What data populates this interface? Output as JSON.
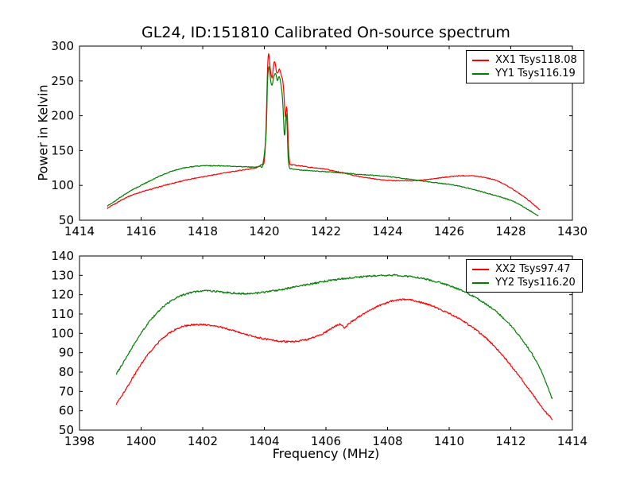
{
  "figure": {
    "title": "GL24, ID:151810 Calibrated On-source spectrum",
    "background": "#ffffff",
    "frame_color": "#000000"
  },
  "chart_data": [
    {
      "type": "line",
      "title": "",
      "xlabel": "",
      "ylabel": "Power in Kelvin",
      "xlim": [
        1414,
        1430
      ],
      "ylim": [
        50,
        300
      ],
      "xticks": [
        1414,
        1416,
        1418,
        1420,
        1422,
        1424,
        1426,
        1428,
        1430
      ],
      "yticks": [
        50,
        100,
        150,
        200,
        250,
        300
      ],
      "grid": false,
      "legend_position": "upper right",
      "series": [
        {
          "label": "XX1 Tsys118.08",
          "color": "#ff0000",
          "noise_k": 0.6,
          "points": [
            [
              1414.9,
              67
            ],
            [
              1415.1,
              72
            ],
            [
              1415.4,
              80
            ],
            [
              1415.7,
              86
            ],
            [
              1416.0,
              90.5
            ],
            [
              1416.4,
              95.5
            ],
            [
              1416.8,
              100.5
            ],
            [
              1417.2,
              105
            ],
            [
              1417.6,
              109
            ],
            [
              1418.0,
              112.5
            ],
            [
              1418.4,
              115.5
            ],
            [
              1418.8,
              118.5
            ],
            [
              1419.2,
              121.5
            ],
            [
              1419.5,
              123.5
            ],
            [
              1419.75,
              125.5
            ],
            [
              1419.9,
              130
            ],
            [
              1420.0,
              136
            ],
            [
              1420.06,
              190
            ],
            [
              1420.1,
              262
            ],
            [
              1420.14,
              289
            ],
            [
              1420.19,
              268
            ],
            [
              1420.25,
              254
            ],
            [
              1420.3,
              272
            ],
            [
              1420.34,
              278
            ],
            [
              1420.4,
              262
            ],
            [
              1420.45,
              263
            ],
            [
              1420.49,
              267
            ],
            [
              1420.55,
              258
            ],
            [
              1420.6,
              250
            ],
            [
              1420.64,
              228
            ],
            [
              1420.68,
              198
            ],
            [
              1420.72,
              213
            ],
            [
              1420.75,
              198
            ],
            [
              1420.78,
              158
            ],
            [
              1420.82,
              133
            ],
            [
              1420.88,
              129.5
            ],
            [
              1421.0,
              129
            ],
            [
              1421.5,
              126
            ],
            [
              1422.0,
              123
            ],
            [
              1422.5,
              118.5
            ],
            [
              1423.0,
              113.5
            ],
            [
              1423.5,
              109.8
            ],
            [
              1424.0,
              107.3
            ],
            [
              1424.5,
              106.6
            ],
            [
              1425.0,
              107.2
            ],
            [
              1425.5,
              109.5
            ],
            [
              1426.0,
              112.5
            ],
            [
              1426.3,
              113.6
            ],
            [
              1426.6,
              114
            ],
            [
              1426.9,
              113.2
            ],
            [
              1427.2,
              111
            ],
            [
              1427.5,
              107.5
            ],
            [
              1427.8,
              101.5
            ],
            [
              1428.1,
              93.5
            ],
            [
              1428.45,
              83
            ],
            [
              1428.7,
              74
            ],
            [
              1428.95,
              65
            ]
          ]
        },
        {
          "label": "YY1 Tsys116.19",
          "color": "#007f00",
          "noise_k": 0.6,
          "points": [
            [
              1414.9,
              70
            ],
            [
              1415.1,
              76
            ],
            [
              1415.4,
              85
            ],
            [
              1415.7,
              93
            ],
            [
              1416.0,
              100
            ],
            [
              1416.4,
              109
            ],
            [
              1416.8,
              117
            ],
            [
              1417.2,
              123
            ],
            [
              1417.6,
              126.5
            ],
            [
              1418.0,
              128
            ],
            [
              1418.4,
              128.2
            ],
            [
              1418.8,
              127.8
            ],
            [
              1419.2,
              127
            ],
            [
              1419.6,
              126.3
            ],
            [
              1419.85,
              127.5
            ],
            [
              1419.95,
              130
            ],
            [
              1420.06,
              175
            ],
            [
              1420.1,
              245
            ],
            [
              1420.15,
              271
            ],
            [
              1420.2,
              252
            ],
            [
              1420.25,
              244
            ],
            [
              1420.32,
              258
            ],
            [
              1420.37,
              260
            ],
            [
              1420.42,
              251
            ],
            [
              1420.48,
              256
            ],
            [
              1420.52,
              250
            ],
            [
              1420.57,
              235
            ],
            [
              1420.61,
              210
            ],
            [
              1420.65,
              172
            ],
            [
              1420.68,
              182
            ],
            [
              1420.71,
              203
            ],
            [
              1420.74,
              185
            ],
            [
              1420.77,
              142
            ],
            [
              1420.81,
              126
            ],
            [
              1420.87,
              124
            ],
            [
              1421.0,
              123
            ],
            [
              1421.5,
              121
            ],
            [
              1422.0,
              119.6
            ],
            [
              1422.5,
              118
            ],
            [
              1423.0,
              116.2
            ],
            [
              1423.5,
              114.5
            ],
            [
              1424.0,
              112.8
            ],
            [
              1424.5,
              110
            ],
            [
              1425.0,
              107
            ],
            [
              1425.5,
              104.3
            ],
            [
              1426.0,
              101.4
            ],
            [
              1426.5,
              97.2
            ],
            [
              1427.0,
              91.5
            ],
            [
              1427.5,
              85.5
            ],
            [
              1428.0,
              78.5
            ],
            [
              1428.4,
              69.5
            ],
            [
              1428.7,
              61.5
            ],
            [
              1428.9,
              56
            ]
          ]
        }
      ]
    },
    {
      "type": "line",
      "title": "",
      "xlabel": "Frequency (MHz)",
      "ylabel": "",
      "xlim": [
        1398,
        1414
      ],
      "ylim": [
        50,
        140
      ],
      "xticks": [
        1398,
        1400,
        1402,
        1404,
        1406,
        1408,
        1410,
        1412,
        1414
      ],
      "yticks": [
        50,
        60,
        70,
        80,
        90,
        100,
        110,
        120,
        130,
        140
      ],
      "grid": false,
      "legend_position": "upper right",
      "series": [
        {
          "label": "XX2 Tsys97.47",
          "color": "#ff0000",
          "noise_k": 0.45,
          "points": [
            [
              1399.2,
              63.5
            ],
            [
              1399.5,
              71
            ],
            [
              1399.8,
              79
            ],
            [
              1400.1,
              86.5
            ],
            [
              1400.4,
              92.5
            ],
            [
              1400.7,
              97.5
            ],
            [
              1401.0,
              101
            ],
            [
              1401.3,
              103.3
            ],
            [
              1401.6,
              104.3
            ],
            [
              1401.9,
              104.6
            ],
            [
              1402.2,
              104.3
            ],
            [
              1402.5,
              103.5
            ],
            [
              1402.8,
              102.3
            ],
            [
              1403.1,
              101
            ],
            [
              1403.4,
              99.6
            ],
            [
              1403.7,
              98.2
            ],
            [
              1404.0,
              97.2
            ],
            [
              1404.3,
              96.4
            ],
            [
              1404.6,
              95.9
            ],
            [
              1404.9,
              95.7
            ],
            [
              1405.2,
              96.2
            ],
            [
              1405.5,
              97.4
            ],
            [
              1405.8,
              99.2
            ],
            [
              1406.0,
              100.8
            ],
            [
              1406.2,
              102.8
            ],
            [
              1406.35,
              104.2
            ],
            [
              1406.5,
              104.6
            ],
            [
              1406.6,
              102.8
            ],
            [
              1406.75,
              105.2
            ],
            [
              1407.0,
              107.8
            ],
            [
              1407.3,
              110.8
            ],
            [
              1407.6,
              113.4
            ],
            [
              1408.0,
              116
            ],
            [
              1408.3,
              117.3
            ],
            [
              1408.6,
              117.5
            ],
            [
              1408.9,
              116.8
            ],
            [
              1409.2,
              115.5
            ],
            [
              1409.5,
              113.8
            ],
            [
              1409.8,
              111.8
            ],
            [
              1410.1,
              109.5
            ],
            [
              1410.4,
              106.8
            ],
            [
              1410.7,
              103.8
            ],
            [
              1411.0,
              100.2
            ],
            [
              1411.3,
              96
            ],
            [
              1411.6,
              91
            ],
            [
              1411.9,
              85.5
            ],
            [
              1412.2,
              79.5
            ],
            [
              1412.5,
              73
            ],
            [
              1412.8,
              66.5
            ],
            [
              1413.1,
              60
            ],
            [
              1413.35,
              55.5
            ]
          ]
        },
        {
          "label": "YY2 Tsys116.20",
          "color": "#007f00",
          "noise_k": 0.45,
          "points": [
            [
              1399.2,
              79
            ],
            [
              1399.5,
              87
            ],
            [
              1399.8,
              95
            ],
            [
              1400.1,
              102.5
            ],
            [
              1400.4,
              108.5
            ],
            [
              1400.7,
              113.5
            ],
            [
              1401.0,
              117
            ],
            [
              1401.3,
              119.5
            ],
            [
              1401.6,
              121
            ],
            [
              1401.9,
              121.8
            ],
            [
              1402.2,
              122
            ],
            [
              1402.5,
              121.6
            ],
            [
              1402.8,
              121.1
            ],
            [
              1403.1,
              120.7
            ],
            [
              1403.4,
              120.5
            ],
            [
              1403.7,
              120.7
            ],
            [
              1404.0,
              121.3
            ],
            [
              1404.5,
              122.5
            ],
            [
              1405.0,
              124
            ],
            [
              1405.5,
              125.5
            ],
            [
              1406.0,
              127
            ],
            [
              1406.5,
              128.2
            ],
            [
              1407.0,
              129
            ],
            [
              1407.5,
              129.7
            ],
            [
              1408.0,
              130
            ],
            [
              1408.3,
              130
            ],
            [
              1408.7,
              129.4
            ],
            [
              1409.0,
              128.7
            ],
            [
              1409.3,
              127.8
            ],
            [
              1409.6,
              126.6
            ],
            [
              1409.9,
              125.2
            ],
            [
              1410.2,
              123.5
            ],
            [
              1410.5,
              121.5
            ],
            [
              1410.8,
              119
            ],
            [
              1411.1,
              116.2
            ],
            [
              1411.4,
              112.8
            ],
            [
              1411.7,
              108.8
            ],
            [
              1412.0,
              104
            ],
            [
              1412.3,
              98.2
            ],
            [
              1412.6,
              91.5
            ],
            [
              1412.9,
              83.5
            ],
            [
              1413.15,
              74
            ],
            [
              1413.35,
              66
            ]
          ]
        }
      ]
    }
  ]
}
